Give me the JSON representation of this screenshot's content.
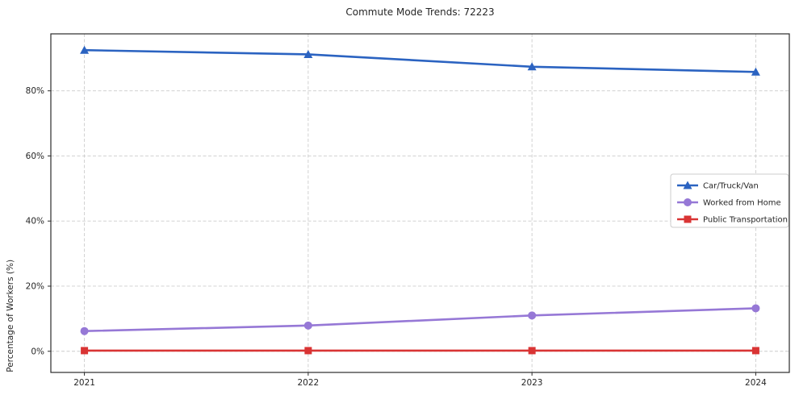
{
  "title": "Commute Mode Trends: 72223",
  "chart_data": {
    "type": "line",
    "title": "Commute Mode Trends: 72223",
    "xlabel": "",
    "ylabel": "Percentage of Workers (%)",
    "x": [
      2021,
      2022,
      2023,
      2024
    ],
    "xtick_labels": [
      "2021",
      "2022",
      "2023",
      "2024"
    ],
    "yticks": [
      0,
      20,
      40,
      60,
      80
    ],
    "ytick_labels": [
      "0%",
      "20%",
      "40%",
      "60%",
      "80%"
    ],
    "xlim": [
      2020.85,
      2024.15
    ],
    "ylim": [
      -6.5,
      97.5
    ],
    "grid": true,
    "grid_style": "dashed",
    "legend_position": "center right",
    "series": [
      {
        "name": "Car/Truck/Van",
        "values": [
          92.5,
          91.2,
          87.4,
          85.8
        ],
        "color": "#2b63c1",
        "marker": "triangle"
      },
      {
        "name": "Worked from Home",
        "values": [
          6.2,
          7.9,
          11.0,
          13.2
        ],
        "color": "#9678d6",
        "marker": "circle"
      },
      {
        "name": "Public Transportation",
        "values": [
          0.2,
          0.2,
          0.2,
          0.2
        ],
        "color": "#d93434",
        "marker": "square"
      }
    ],
    "colors": {
      "grid": "#cccccc",
      "spine": "#2b2b2b",
      "tick_text": "#262626",
      "legend_border": "#cccccc",
      "legend_bg": "#ffffff"
    }
  }
}
